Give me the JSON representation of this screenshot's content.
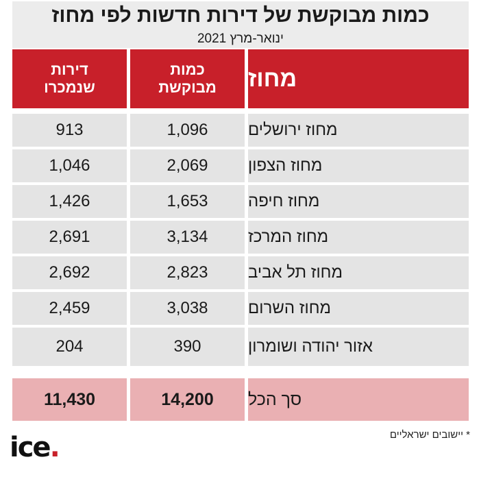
{
  "title": "כמות מבוקשת של דירות חדשות לפי מחוז",
  "subtitle": "ינואר-מרץ 2021",
  "columns": {
    "district": "מחוז",
    "demanded": [
      "כמות",
      "מבוקשת"
    ],
    "sold": [
      "דירות",
      "שנמכרו"
    ]
  },
  "rows": [
    {
      "district": "מחוז ירושלים",
      "demanded": "1,096",
      "sold": "913"
    },
    {
      "district": "מחוז הצפון",
      "demanded": "2,069",
      "sold": "1,046"
    },
    {
      "district": "מחוז חיפה",
      "demanded": "1,653",
      "sold": "1,426"
    },
    {
      "district": "מחוז המרכז",
      "demanded": "3,134",
      "sold": "2,691"
    },
    {
      "district": "מחוז תל אביב",
      "demanded": "2,823",
      "sold": "2,692"
    },
    {
      "district": "מחוז השרום",
      "demanded": "3,038",
      "sold": "2,459"
    },
    {
      "district": "אזור יהודה ושומרון",
      "demanded": "390",
      "sold": "204"
    }
  ],
  "total": {
    "label": "סך הכל",
    "demanded": "14,200",
    "sold": "11,430"
  },
  "footnote": "* יישובים ישראליים",
  "logo": {
    "text": "ice",
    "dot": "."
  },
  "colors": {
    "header": "#c8202a",
    "row": "#e4e4e4",
    "total": "#eab0b3",
    "title_bg": "#ececec"
  }
}
